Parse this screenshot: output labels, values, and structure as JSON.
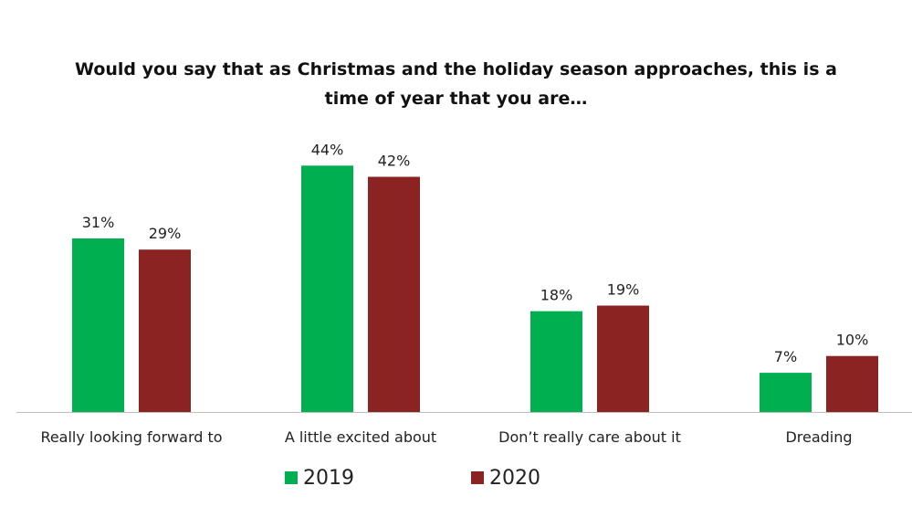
{
  "chart_data": {
    "type": "bar",
    "title": "Would you say that as Christmas and the holiday season approaches, this is a time of year that you are…",
    "categories": [
      "Really looking forward to",
      "A little excited about",
      "Don’t really care about it",
      "Dreading"
    ],
    "series": [
      {
        "name": "2019",
        "values": [
          31,
          44,
          18,
          7
        ],
        "labels": [
          "31%",
          "44%",
          "18%",
          "7%"
        ],
        "color": "#00b050"
      },
      {
        "name": "2020",
        "values": [
          29,
          42,
          19,
          10
        ],
        "labels": [
          "29%",
          "42%",
          "19%",
          "10%"
        ],
        "color": "#8b2323"
      }
    ],
    "ylim": [
      0,
      50
    ],
    "grid": false,
    "legend_position": "bottom"
  }
}
